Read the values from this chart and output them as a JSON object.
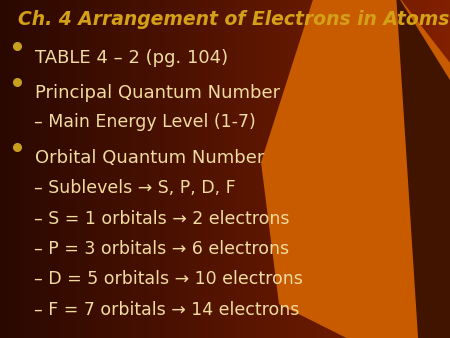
{
  "title": "Ch. 4 Arrangement of Electrons in Atoms",
  "title_color": "#D4A017",
  "title_fontsize": 13.5,
  "bg_color_main": "#5A1000",
  "bg_color_dark": "#2A0800",
  "bullet_color": "#C8A020",
  "text_color": "#F0DCA0",
  "orange_color": "#C85A00",
  "bullet_items": [
    {
      "text": "TABLE 4 – 2 (pg. 104)",
      "indent": 0,
      "bullet": true,
      "fontsize": 13.0
    },
    {
      "text": "Principal Quantum Number",
      "indent": 0,
      "bullet": true,
      "fontsize": 13.0
    },
    {
      "text": "– Main Energy Level (1-7)",
      "indent": 1,
      "bullet": false,
      "fontsize": 12.5
    },
    {
      "text": "Orbital Quantum Number",
      "indent": 0,
      "bullet": true,
      "fontsize": 13.0
    },
    {
      "text": "– Sublevels → S, P, D, F",
      "indent": 1,
      "bullet": false,
      "fontsize": 12.5
    },
    {
      "text": "– S = 1 orbitals → 2 electrons",
      "indent": 1,
      "bullet": false,
      "fontsize": 12.5
    },
    {
      "text": "– P = 3 orbitals → 6 electrons",
      "indent": 1,
      "bullet": false,
      "fontsize": 12.5
    },
    {
      "text": "– D = 5 orbitals → 10 electrons",
      "indent": 1,
      "bullet": false,
      "fontsize": 12.5
    },
    {
      "text": "– F = 7 orbitals → 14 electrons",
      "indent": 1,
      "bullet": false,
      "fontsize": 12.5
    }
  ]
}
